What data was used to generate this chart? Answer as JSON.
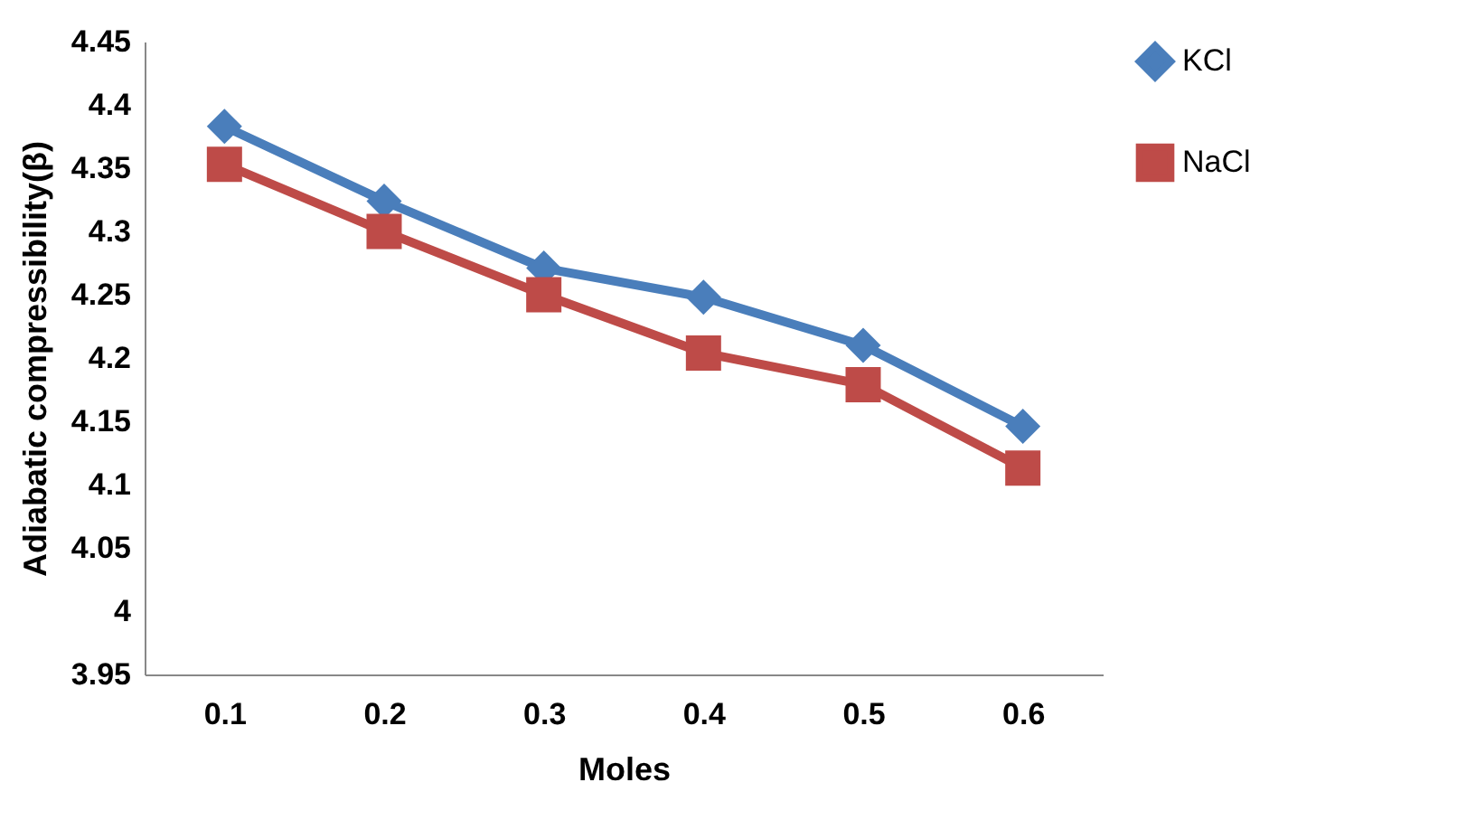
{
  "chart_data": {
    "type": "line",
    "xlabel": "Moles",
    "ylabel": "Adiabatic compressibility(β)",
    "categories": [
      "0.1",
      "0.2",
      "0.3",
      "0.4",
      "0.5",
      "0.6"
    ],
    "series": [
      {
        "name": "KCl",
        "color": "#4a7ebb",
        "marker": "diamond",
        "values": [
          4.383,
          4.324,
          4.271,
          4.248,
          4.21,
          4.146
        ]
      },
      {
        "name": "NaCl",
        "color": "#be4b48",
        "marker": "square",
        "values": [
          4.353,
          4.3,
          4.25,
          4.204,
          4.179,
          4.113
        ]
      }
    ],
    "ylim": [
      3.95,
      4.45
    ],
    "yticks": [
      3.95,
      4,
      4.05,
      4.1,
      4.15,
      4.2,
      4.25,
      4.3,
      4.35,
      4.4,
      4.45
    ],
    "grid": false,
    "legend": "right",
    "line_style": "solid"
  }
}
